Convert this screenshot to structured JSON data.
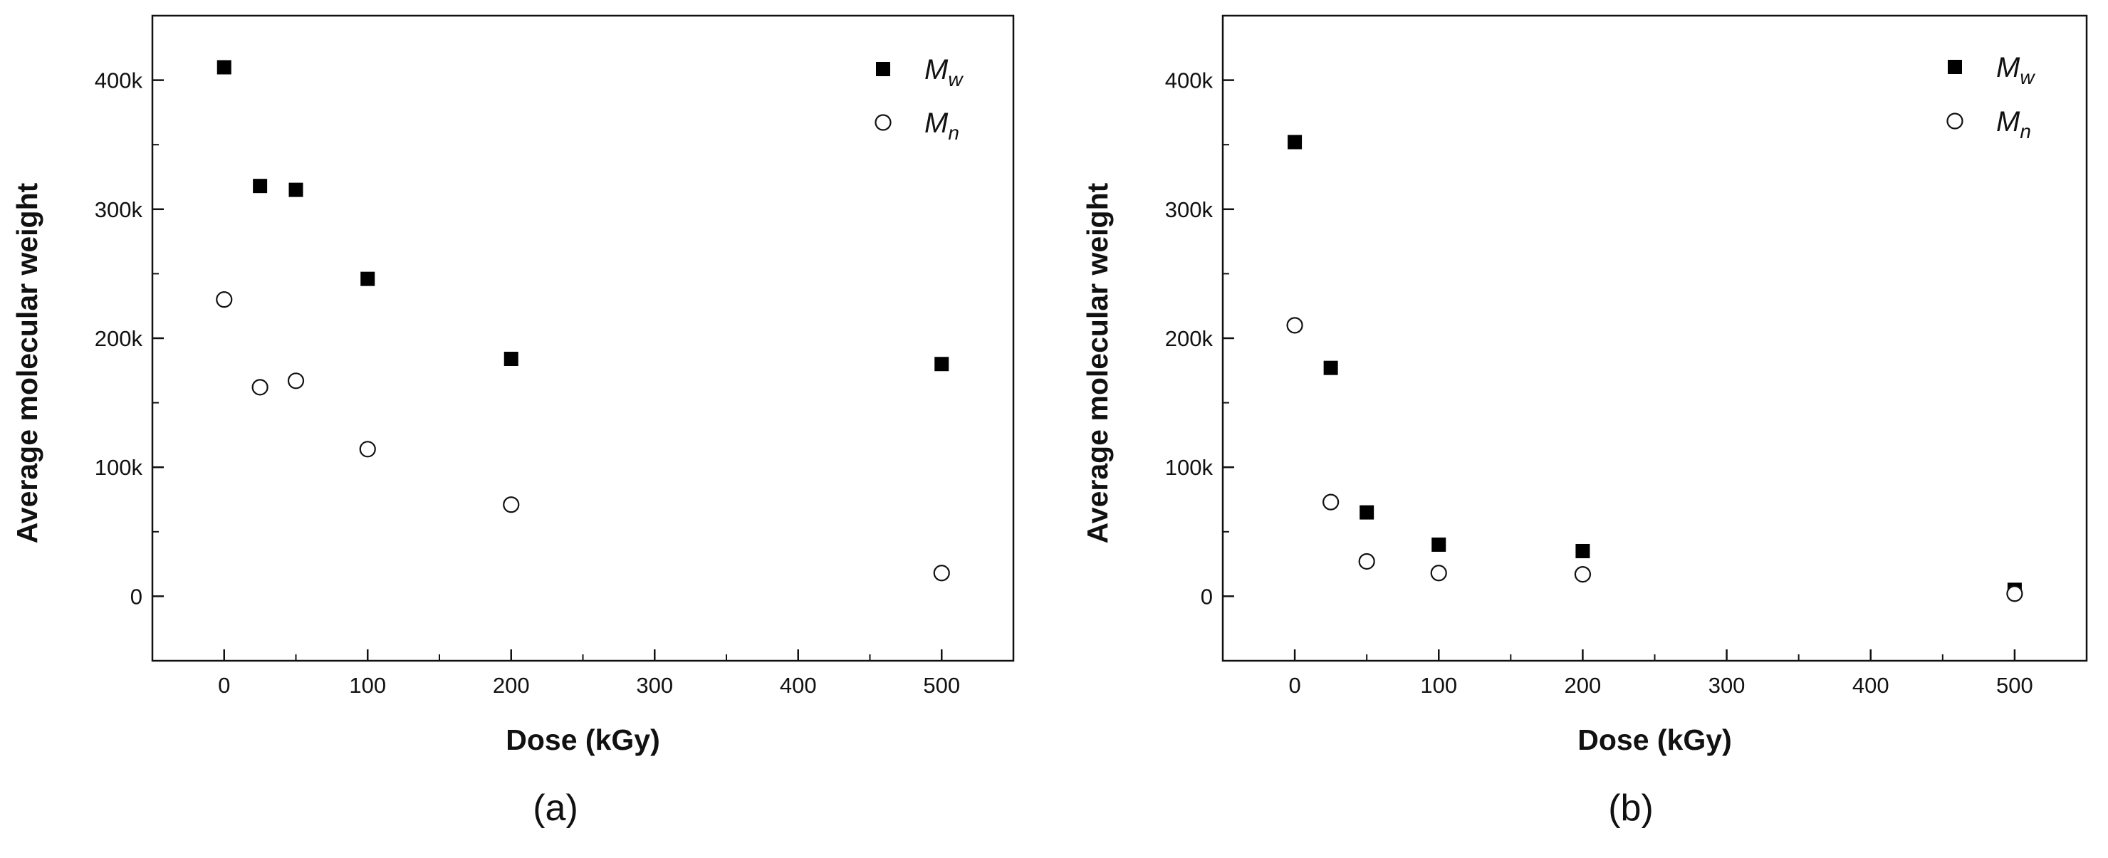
{
  "chart_data": [
    {
      "type": "scatter",
      "panel_label": "(a)",
      "xlabel": "Dose (kGy)",
      "ylabel": "Average molecular weight",
      "xlim": [
        -50,
        550
      ],
      "ylim": [
        -50000,
        450000
      ],
      "x_ticks": [
        0,
        100,
        200,
        300,
        400,
        500
      ],
      "x_tick_labels": [
        "0",
        "100",
        "200",
        "300",
        "400",
        "500"
      ],
      "y_ticks": [
        0,
        100000,
        200000,
        300000,
        400000
      ],
      "y_tick_labels": [
        "0",
        "100k",
        "200k",
        "300k",
        "400k"
      ],
      "legend_position": "top-right",
      "series": [
        {
          "name": "M",
          "subscript": "w",
          "marker": "filled-square",
          "x": [
            0,
            25,
            50,
            100,
            200,
            500
          ],
          "y": [
            410000,
            318000,
            315000,
            246000,
            184000,
            180000
          ]
        },
        {
          "name": "M",
          "subscript": "n",
          "marker": "open-circle",
          "x": [
            0,
            25,
            50,
            100,
            200,
            500
          ],
          "y": [
            230000,
            162000,
            167000,
            114000,
            71000,
            18000
          ]
        }
      ]
    },
    {
      "type": "scatter",
      "panel_label": "(b)",
      "xlabel": "Dose (kGy)",
      "ylabel": "Average molecular weight",
      "xlim": [
        -50,
        550
      ],
      "ylim": [
        -50000,
        450000
      ],
      "x_ticks": [
        0,
        100,
        200,
        300,
        400,
        500
      ],
      "x_tick_labels": [
        "0",
        "100",
        "200",
        "300",
        "400",
        "500"
      ],
      "y_ticks": [
        0,
        100000,
        200000,
        300000,
        400000
      ],
      "y_tick_labels": [
        "0",
        "100k",
        "200k",
        "300k",
        "400k"
      ],
      "legend_position": "top-right",
      "series": [
        {
          "name": "M",
          "subscript": "w",
          "marker": "filled-square",
          "x": [
            0,
            25,
            50,
            100,
            200,
            500
          ],
          "y": [
            352000,
            177000,
            65000,
            40000,
            35000,
            5000
          ]
        },
        {
          "name": "M",
          "subscript": "n",
          "marker": "open-circle",
          "x": [
            0,
            25,
            50,
            100,
            200,
            500
          ],
          "y": [
            210000,
            73000,
            27000,
            18000,
            17000,
            2000
          ]
        }
      ]
    }
  ]
}
